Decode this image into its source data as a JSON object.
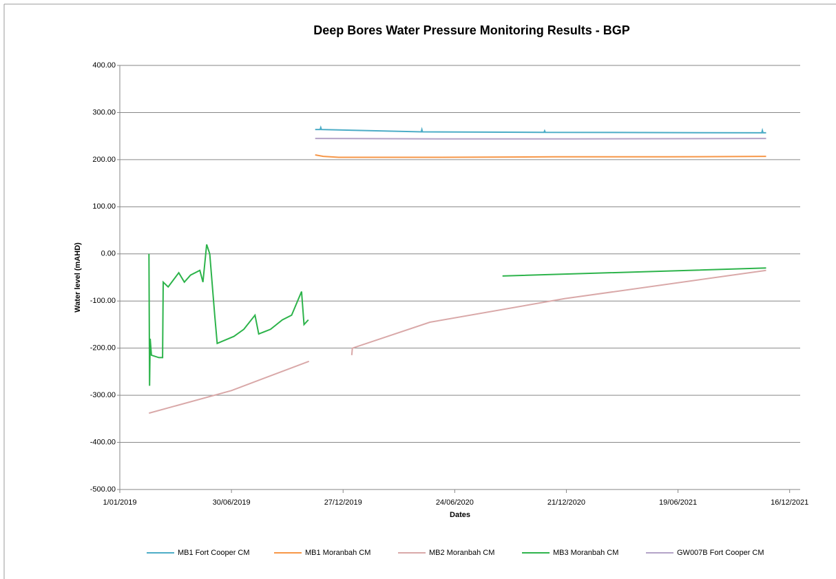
{
  "chart_data": {
    "type": "line",
    "title": "Deep Bores Water Pressure Monitoring Results - BGP",
    "x_label": "Dates",
    "y_label": "Water level (mAHD)",
    "xlim": [
      "2019-01-01",
      "2022-01-02"
    ],
    "xticks": [
      {
        "value": "2019-01-01",
        "label": "1/01/2019"
      },
      {
        "value": "2019-06-30",
        "label": "30/06/2019"
      },
      {
        "value": "2019-12-27",
        "label": "27/12/2019"
      },
      {
        "value": "2020-06-24",
        "label": "24/06/2020"
      },
      {
        "value": "2020-12-21",
        "label": "21/12/2020"
      },
      {
        "value": "2021-06-19",
        "label": "19/06/2021"
      },
      {
        "value": "2021-12-16",
        "label": "16/12/2021"
      }
    ],
    "ylim": [
      -500,
      400
    ],
    "yticks": [
      {
        "value": 400,
        "label": "400.00"
      },
      {
        "value": 300,
        "label": "300.00"
      },
      {
        "value": 200,
        "label": "200.00"
      },
      {
        "value": 100,
        "label": "100.00"
      },
      {
        "value": 0,
        "label": "0.00"
      },
      {
        "value": -100,
        "label": "-100.00"
      },
      {
        "value": -200,
        "label": "-200.00"
      },
      {
        "value": -300,
        "label": "-300.00"
      },
      {
        "value": -400,
        "label": "-400.00"
      },
      {
        "value": -500,
        "label": "-500.00"
      }
    ],
    "grid": true,
    "legend": "bottom",
    "series": [
      {
        "name": "MB1 Fort Cooper CM",
        "color": "#4bacc6",
        "x": [
          "2019-11-12",
          "2019-11-20",
          "2019-11-21",
          "2019-11-22",
          "2020-05-01",
          "2020-05-02",
          "2020-05-03",
          "2020-11-15",
          "2020-11-16",
          "2020-11-17",
          "2021-11-01",
          "2021-11-02",
          "2021-11-03",
          "2021-11-08"
        ],
        "values": [
          264,
          264,
          268,
          264,
          259,
          264,
          259,
          258,
          261,
          258,
          257,
          262,
          257,
          257
        ]
      },
      {
        "name": "MB1 Moranbah CM",
        "color": "#f79646",
        "x": [
          "2019-11-12",
          "2019-11-25",
          "2019-12-20",
          "2020-06-01",
          "2020-12-01",
          "2021-06-01",
          "2021-11-08"
        ],
        "values": [
          210,
          207,
          205,
          205,
          206,
          206,
          207
        ]
      },
      {
        "name": "MB2 Moranbah CM",
        "color": "#d9a8a8",
        "x": [
          "2019-02-17",
          "2019-06-30",
          "2019-11-02",
          "2020-01-09",
          "2020-01-10",
          "2020-01-11",
          "2020-05-15",
          "2020-12-18",
          "2021-11-08"
        ],
        "values": [
          -338,
          -290,
          -228,
          null,
          -215,
          -200,
          -145,
          -95,
          -35
        ]
      },
      {
        "name": "MB3 Moranbah CM",
        "color": "#2cb34a",
        "x": [
          "2019-02-17",
          "2019-02-18",
          "2019-02-19",
          "2019-02-21",
          "2019-03-05",
          "2019-03-11",
          "2019-03-12",
          "2019-03-20",
          "2019-04-06",
          "2019-04-15",
          "2019-04-25",
          "2019-05-10",
          "2019-05-15",
          "2019-05-21",
          "2019-05-26",
          "2019-06-03",
          "2019-06-07",
          "2019-07-04",
          "2019-07-20",
          "2019-08-07",
          "2019-08-13",
          "2019-09-01",
          "2019-09-20",
          "2019-10-05",
          "2019-10-21",
          "2019-10-25",
          "2019-11-01",
          "2020-09-08",
          "2020-09-09",
          "2021-11-08"
        ],
        "values": [
          0,
          -280,
          -180,
          -215,
          -220,
          -220,
          -60,
          -70,
          -40,
          -60,
          -45,
          -35,
          -60,
          20,
          0,
          -130,
          -190,
          -175,
          -160,
          -130,
          -170,
          -160,
          -140,
          -130,
          -80,
          -150,
          -140,
          null,
          -47,
          -30
        ]
      },
      {
        "name": "GW007B Fort Cooper CM",
        "color": "#b3a2c7",
        "x": [
          "2019-11-12",
          "2020-06-01",
          "2021-01-01",
          "2021-11-08"
        ],
        "values": [
          245,
          244,
          244,
          245
        ]
      }
    ]
  }
}
